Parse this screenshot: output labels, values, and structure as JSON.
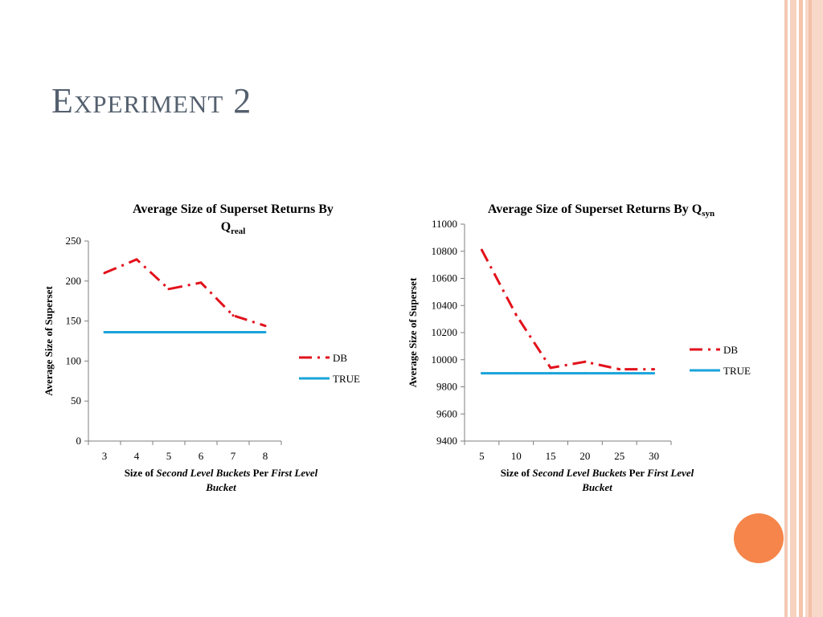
{
  "slide": {
    "title": "Experiment 2"
  },
  "colors": {
    "db": "#e2111b",
    "true": "#19a3da",
    "axis": "#7f7f7f"
  },
  "chart_data": [
    {
      "type": "line",
      "title": "Average Size of Superset Returns By Q",
      "title_subscript": "real",
      "xlabel": {
        "a": "Size of ",
        "b": "Second Level Buckets",
        "c": " Per ",
        "d": "First Level",
        "e": "Bucket"
      },
      "ylabel": "Average Size of Superset",
      "x": [
        3,
        4,
        5,
        6,
        7,
        8
      ],
      "ylim": [
        0,
        250
      ],
      "yticks": [
        0,
        50,
        100,
        150,
        200,
        250
      ],
      "legend_position": "right",
      "series": [
        {
          "name": "DB",
          "values": [
            210,
            227,
            190,
            198,
            157,
            144
          ],
          "style": "dashdot"
        },
        {
          "name": "TRUE",
          "values": [
            136,
            136,
            136,
            136,
            136,
            136
          ],
          "style": "solid"
        }
      ]
    },
    {
      "type": "line",
      "title": "Average Size of Superset Returns By Q",
      "title_subscript": "syn",
      "xlabel": {
        "a": "Size of ",
        "b": "Second Level Buckets",
        "c": " Per ",
        "d": "First Level",
        "e": "Bucket"
      },
      "ylabel": "Average Size of Superset",
      "x": [
        5,
        10,
        15,
        20,
        25,
        30
      ],
      "ylim": [
        9400,
        11000
      ],
      "yticks": [
        9400,
        9600,
        9800,
        10000,
        10200,
        10400,
        10600,
        10800,
        11000
      ],
      "legend_position": "right",
      "series": [
        {
          "name": "DB",
          "values": [
            10810,
            10330,
            9940,
            9985,
            9930,
            9930
          ],
          "style": "dashdot"
        },
        {
          "name": "TRUE",
          "values": [
            9900,
            9900,
            9900,
            9900,
            9900,
            9900
          ],
          "style": "solid"
        }
      ]
    }
  ]
}
